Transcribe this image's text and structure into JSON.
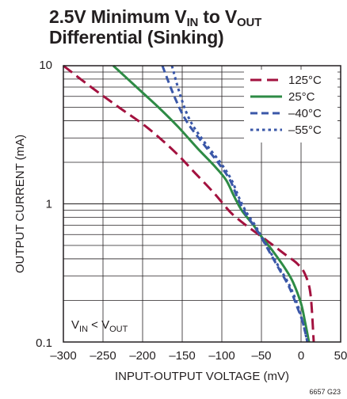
{
  "chart_data": {
    "type": "line",
    "title_main": "2.5V Minimum V",
    "title_sub1": "IN",
    "title_mid": " to V",
    "title_sub2": "OUT",
    "title_line2": "Differential (Sinking)",
    "xlabel": "INPUT-OUTPUT VOLTAGE (mV)",
    "ylabel": "OUTPUT CURRENT (mA)",
    "xlim": [
      -300,
      50
    ],
    "ylim": [
      0.1,
      10
    ],
    "yscale": "log",
    "grid": true,
    "legend_position": "top-right",
    "x_ticks": [
      -300,
      -250,
      -200,
      -150,
      -100,
      -50,
      0,
      50
    ],
    "x_tick_labels": [
      "–300",
      "–250",
      "–200",
      "–150",
      "–100",
      "–50",
      "0",
      "50"
    ],
    "y_ticks": [
      0.1,
      1,
      10
    ],
    "y_tick_labels": [
      "0.1",
      "1",
      "10"
    ],
    "annotation": {
      "main": "V",
      "sub1": "IN",
      "mid": " < V",
      "sub2": "OUT"
    },
    "figure_code": "6657 G23",
    "series": [
      {
        "name": "125°C",
        "color": "#a3123f",
        "dash": "long",
        "x": [
          -300,
          -265,
          -230,
          -195,
          -160,
          -135,
          -110,
          -90,
          -75,
          -62,
          -50,
          -35,
          -20,
          -5,
          5,
          12,
          16
        ],
        "y": [
          10,
          7.0,
          5.0,
          3.6,
          2.4,
          1.7,
          1.2,
          0.88,
          0.74,
          0.65,
          0.58,
          0.5,
          0.43,
          0.37,
          0.31,
          0.22,
          0.1
        ]
      },
      {
        "name": "25°C",
        "color": "#2e8b45",
        "dash": "solid",
        "x": [
          -237,
          -210,
          -180,
          -155,
          -130,
          -110,
          -95,
          -85,
          -75,
          -60,
          -50,
          -35,
          -20,
          -10,
          0,
          5,
          10
        ],
        "y": [
          10,
          7.2,
          5.0,
          3.6,
          2.5,
          1.9,
          1.5,
          1.15,
          0.9,
          0.7,
          0.58,
          0.45,
          0.34,
          0.27,
          0.19,
          0.14,
          0.1
        ]
      },
      {
        "name": "–40°C",
        "color": "#3a57a8",
        "dash": "medium",
        "x": [
          -175,
          -160,
          -145,
          -125,
          -105,
          -90,
          -80,
          -70,
          -60,
          -50,
          -40,
          -28,
          -15,
          -5,
          2,
          8
        ],
        "y": [
          10,
          6.0,
          4.0,
          2.8,
          2.0,
          1.5,
          1.1,
          0.85,
          0.7,
          0.57,
          0.45,
          0.34,
          0.25,
          0.18,
          0.14,
          0.1
        ]
      },
      {
        "name": "–55°C",
        "color": "#3a57a8",
        "dash": "short",
        "x": [
          -163,
          -152,
          -140,
          -122,
          -102,
          -88,
          -78,
          -68,
          -58,
          -50,
          -40,
          -28,
          -15,
          -5,
          2,
          8
        ],
        "y": [
          10,
          6.0,
          4.0,
          2.8,
          2.0,
          1.5,
          1.1,
          0.85,
          0.7,
          0.58,
          0.46,
          0.35,
          0.26,
          0.19,
          0.14,
          0.1
        ]
      }
    ]
  }
}
